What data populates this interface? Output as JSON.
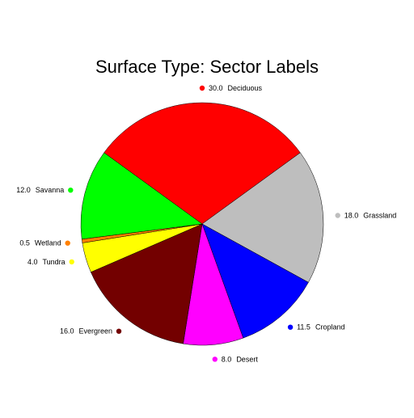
{
  "chart_data": {
    "type": "pie",
    "title": "Surface Type: Sector Labels",
    "slices": [
      {
        "label": "Deciduous",
        "value": 30.0,
        "value_text": "30.0",
        "color": "#ff0000"
      },
      {
        "label": "Grassland",
        "value": 18.0,
        "value_text": "18.0",
        "color": "#bebebe"
      },
      {
        "label": "Cropland",
        "value": 11.5,
        "value_text": "11.5",
        "color": "#0000ff"
      },
      {
        "label": "Desert",
        "value": 8.0,
        "value_text": "8.0",
        "color": "#ff00ff"
      },
      {
        "label": "Evergreen",
        "value": 16.0,
        "value_text": "16.0",
        "color": "#730000"
      },
      {
        "label": "Tundra",
        "value": 4.0,
        "value_text": "4.0",
        "color": "#ffff00"
      },
      {
        "label": "Wetland",
        "value": 0.5,
        "value_text": "0.5",
        "color": "#ff8000"
      },
      {
        "label": "Savanna",
        "value": 12.0,
        "value_text": "12.0",
        "color": "#00ff00"
      }
    ]
  }
}
